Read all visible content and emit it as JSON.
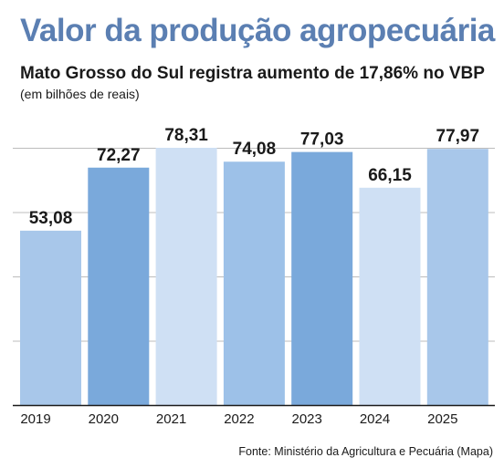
{
  "header": {
    "title": "Valor da produção agropecuária",
    "subtitle": "Mato Grosso do Sul registra aumento de 17,86% no VBP",
    "unit": "(em bilhões de reais)"
  },
  "footer": {
    "source": "Fonte: Ministério da Agricultura e Pecuária (Mapa)"
  },
  "chart_data": {
    "type": "bar",
    "categories": [
      "2019",
      "2020",
      "2021",
      "2022",
      "2023",
      "2024",
      "2025"
    ],
    "values": [
      53.08,
      72.27,
      78.31,
      74.08,
      77.03,
      66.15,
      77.97
    ],
    "value_labels": [
      "53,08",
      "72,27",
      "78,31",
      "74,08",
      "77,03",
      "66,15",
      "77,97"
    ],
    "bar_colors": [
      "#a8c7ea",
      "#7aa9db",
      "#cfe0f4",
      "#9dc1e8",
      "#7aa9db",
      "#cfe0f4",
      "#a8c7ea"
    ],
    "ylim": [
      0,
      78.31
    ],
    "grid": true,
    "gridline_color": "#bcbcbc",
    "title": "",
    "xlabel": "",
    "ylabel": ""
  }
}
